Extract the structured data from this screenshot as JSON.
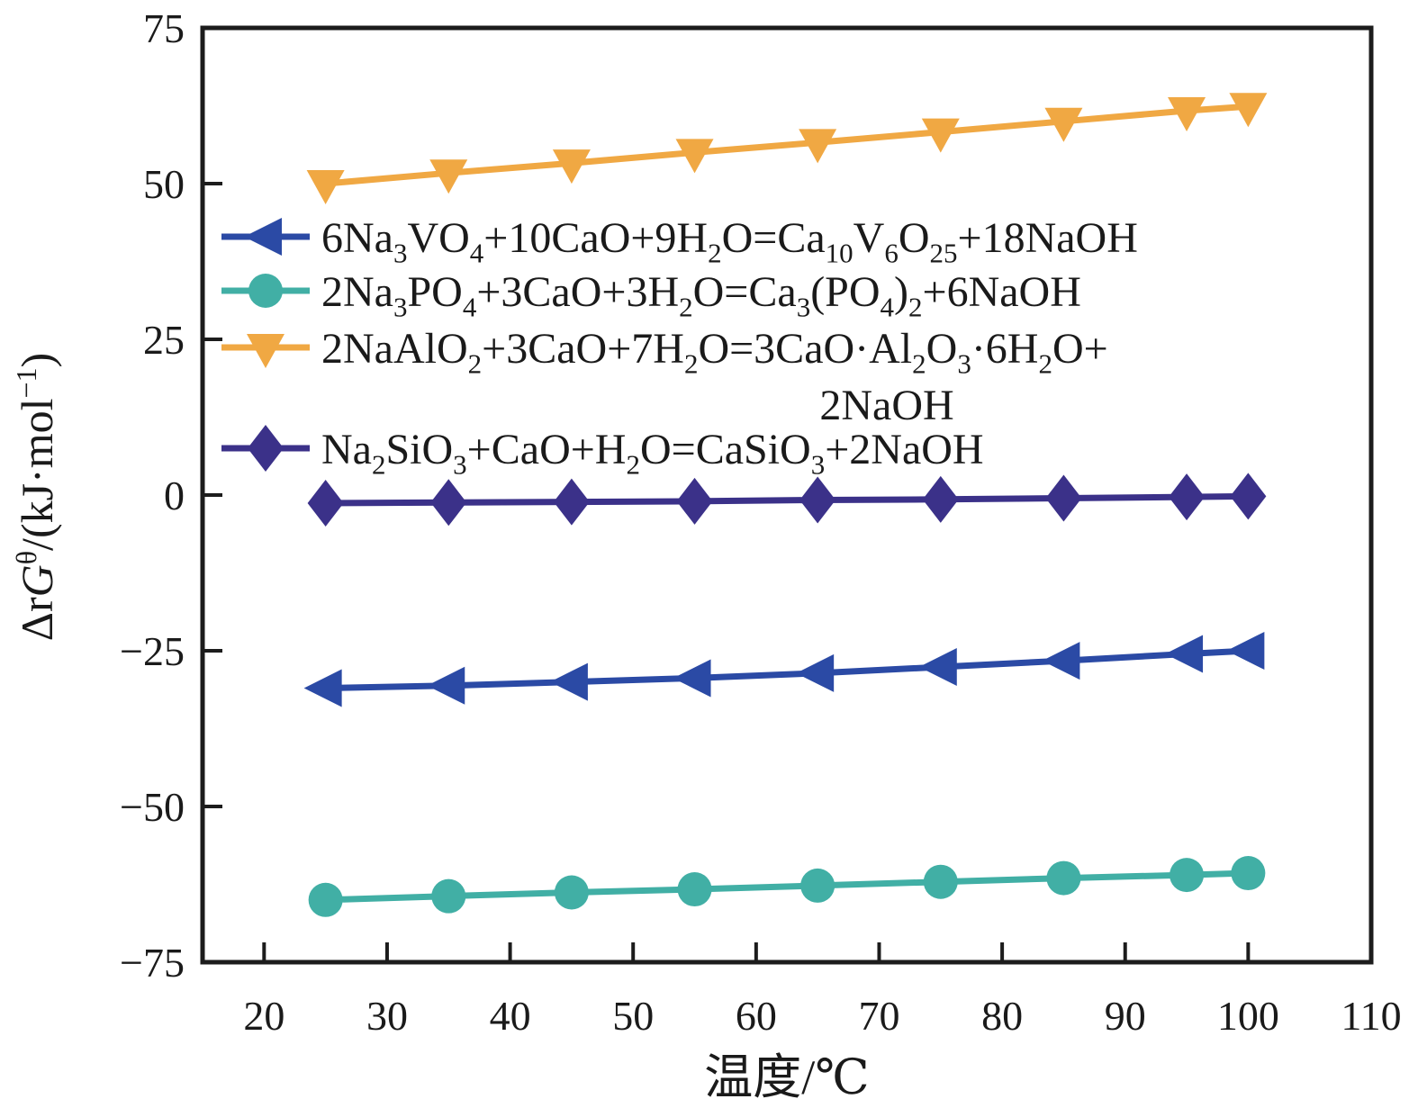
{
  "figure": {
    "background": "#ffffff",
    "axis_color": "#1c1c1c"
  },
  "chart_data": {
    "type": "line",
    "title": "",
    "xlabel": "温度/℃",
    "ylabel": "Δr*G*^θ^/(kJ·mol^−1^)",
    "xlim": [
      15,
      110
    ],
    "ylim": [
      -75,
      75
    ],
    "x_ticks": [
      20,
      30,
      40,
      50,
      60,
      70,
      80,
      90,
      100,
      110
    ],
    "y_ticks": [
      75,
      50,
      25,
      0,
      -25,
      -50,
      -75
    ],
    "grid": false,
    "legend_position": "inside upper-left",
    "x": [
      25,
      35,
      45,
      55,
      65,
      75,
      85,
      95,
      100
    ],
    "series": [
      {
        "id": "vanadate",
        "label_lines": [
          "6Na_3_VO_4_+10CaO+9H_2_O=Ca_10_V_6_O_25_+18NaOH"
        ],
        "marker": "triangle-left",
        "color": "#2b4aa5",
        "values": [
          -31.0,
          -30.6,
          -30.0,
          -29.4,
          -28.6,
          -27.6,
          -26.6,
          -25.5,
          -25.0
        ]
      },
      {
        "id": "phosphate",
        "label_lines": [
          "2Na_3_PO_4_+3CaO+3H_2_O=Ca_3_(PO_4_)_2_+6NaOH"
        ],
        "marker": "circle",
        "color": "#41afa5",
        "values": [
          -65.0,
          -64.4,
          -63.8,
          -63.3,
          -62.7,
          -62.1,
          -61.5,
          -61.0,
          -60.7
        ]
      },
      {
        "id": "aluminate",
        "label_lines": [
          "2NaAlO_2_+3CaO+7H_2_O=3CaO·Al_2_O_3_·6H_2_O+",
          "2NaOH"
        ],
        "marker": "triangle-down",
        "color": "#f0a843",
        "values": [
          50.0,
          51.7,
          53.3,
          55.0,
          56.6,
          58.3,
          60.0,
          61.7,
          62.4
        ]
      },
      {
        "id": "silicate",
        "label_lines": [
          "Na_2_SiO_3_+CaO+H_2_O=CaSiO_3_+2NaOH"
        ],
        "marker": "diamond",
        "color": "#3b3189",
        "values": [
          -1.3,
          -1.2,
          -1.1,
          -1.0,
          -0.8,
          -0.7,
          -0.5,
          -0.3,
          -0.2
        ]
      }
    ]
  }
}
